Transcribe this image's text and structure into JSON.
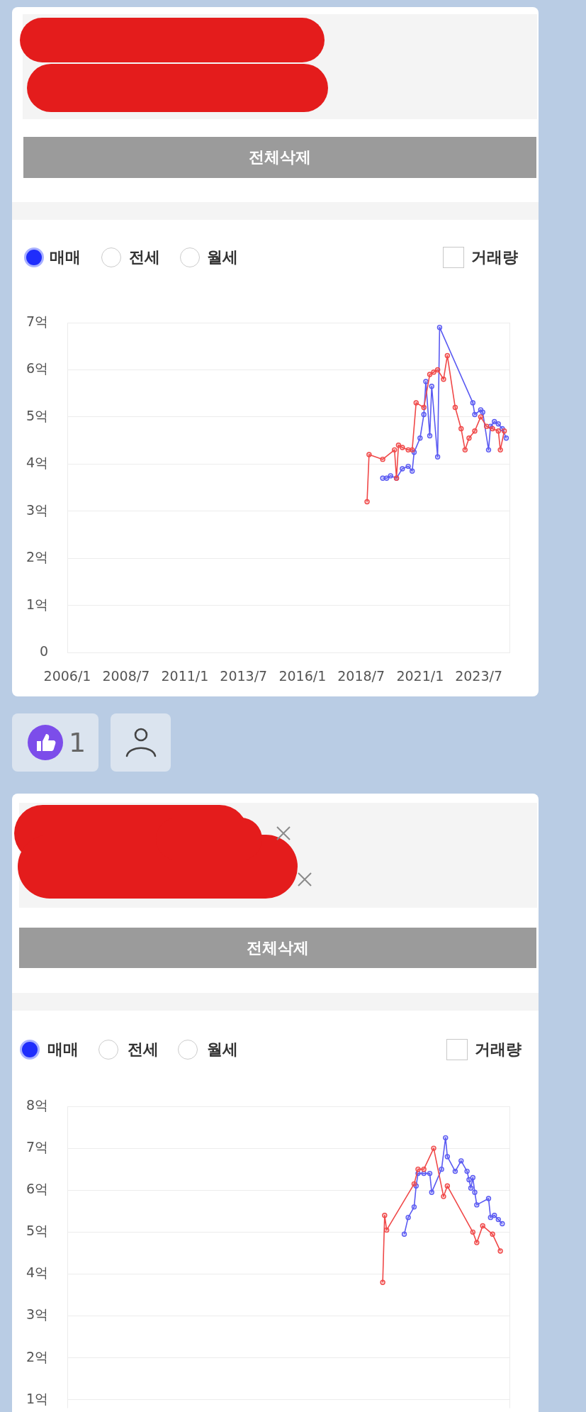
{
  "chart_data": [
    {
      "type": "line",
      "annotations": [
        "전체삭제",
        "매매",
        "전세",
        "월세",
        "거래량",
        "1"
      ],
      "xlim": [
        "2006-01",
        "2024-11"
      ],
      "xticks": [
        {
          "value": "2006-01",
          "label": "2006/1"
        },
        {
          "value": "2008-07",
          "label": "2008/7"
        },
        {
          "value": "2011-01",
          "label": "2011/1"
        },
        {
          "value": "2013-07",
          "label": "2013/7"
        },
        {
          "value": "2016-01",
          "label": "2016/1"
        },
        {
          "value": "2018-07",
          "label": "2018/7"
        },
        {
          "value": "2021-01",
          "label": "2021/1"
        },
        {
          "value": "2023-07",
          "label": "2023/7"
        }
      ],
      "ylim": [
        0,
        7
      ],
      "yticks": [
        0,
        {
          "value": 1,
          "label": "1억"
        },
        {
          "value": 2,
          "label": "2억"
        },
        {
          "value": 3,
          "label": "3억"
        },
        {
          "value": 4,
          "label": "4억"
        },
        {
          "value": 5,
          "label": "5억"
        },
        {
          "value": 6,
          "label": "6억"
        },
        {
          "value": 7,
          "label": "7억"
        }
      ],
      "grid": "y",
      "marker": "circle",
      "series": [
        {
          "color": "#f04848",
          "x": [
            "2018-10",
            "2018-11",
            "2019-06",
            "2019-12",
            "2020-01",
            "2020-02",
            "2020-04",
            "2020-07",
            "2020-09",
            "2020-11",
            "2021-03",
            "2021-06",
            "2021-08",
            "2021-10",
            "2022-01",
            "2022-03",
            "2022-07",
            "2022-10",
            "2022-12",
            "2023-02",
            "2023-05",
            "2023-08",
            "2023-11",
            "2024-02",
            "2024-05",
            "2024-06",
            "2024-08"
          ],
          "values": [
            3.2,
            4.2,
            4.1,
            4.3,
            3.7,
            4.4,
            4.35,
            4.3,
            4.3,
            5.3,
            5.2,
            5.9,
            5.95,
            6.0,
            5.8,
            6.3,
            5.2,
            4.75,
            4.3,
            4.55,
            4.7,
            5.0,
            4.8,
            4.75,
            4.7,
            4.3,
            4.7
          ]
        },
        {
          "color": "#5a5af2",
          "x": [
            "2019-06",
            "2019-08",
            "2019-10",
            "2020-01",
            "2020-04",
            "2020-07",
            "2020-09",
            "2020-10",
            "2021-01",
            "2021-03",
            "2021-04",
            "2021-06",
            "2021-07",
            "2021-10",
            "2021-11",
            "2023-04",
            "2023-05",
            "2023-08",
            "2023-09",
            "2023-12",
            "2024-01",
            "2024-03",
            "2024-05",
            "2024-07",
            "2024-09"
          ],
          "values": [
            3.7,
            3.7,
            3.75,
            3.7,
            3.9,
            3.95,
            3.85,
            4.25,
            4.55,
            5.05,
            5.75,
            4.6,
            5.65,
            4.15,
            6.9,
            5.3,
            5.05,
            5.15,
            5.1,
            4.3,
            4.8,
            4.9,
            4.85,
            4.75,
            4.55
          ]
        }
      ]
    },
    {
      "type": "line",
      "annotations": [
        "전체삭제",
        "매매",
        "전세",
        "월세",
        "거래량"
      ],
      "xlim": [
        "2006-01",
        "2024-11"
      ],
      "tick_labels": "y",
      "ylim": [
        0.8,
        8
      ],
      "yticks": [
        {
          "value": 1,
          "label": "1억"
        },
        {
          "value": 2,
          "label": "2억"
        },
        {
          "value": 3,
          "label": "3억"
        },
        {
          "value": 4,
          "label": "4억"
        },
        {
          "value": 5,
          "label": "5억"
        },
        {
          "value": 6,
          "label": "6억"
        },
        {
          "value": 7,
          "label": "7억"
        },
        {
          "value": 8,
          "label": "8억"
        }
      ],
      "grid": "y",
      "marker": "circle",
      "series": [
        {
          "color": "#f04848",
          "x": [
            "2019-06",
            "2019-07",
            "2019-08",
            "2020-10",
            "2020-12",
            "2021-03",
            "2021-08",
            "2022-01",
            "2022-03",
            "2023-04",
            "2023-06",
            "2023-09",
            "2024-02",
            "2024-06"
          ],
          "values": [
            3.8,
            5.4,
            5.05,
            6.15,
            6.5,
            6.5,
            7.0,
            5.85,
            6.1,
            5.0,
            4.75,
            5.15,
            4.95,
            4.55
          ]
        },
        {
          "color": "#5a5af2",
          "x": [
            "2020-05",
            "2020-07",
            "2020-10",
            "2020-11",
            "2020-12",
            "2021-03",
            "2021-06",
            "2021-07",
            "2021-12",
            "2022-02",
            "2022-03",
            "2022-07",
            "2022-10",
            "2023-01",
            "2023-02",
            "2023-03",
            "2023-04",
            "2023-05",
            "2023-06",
            "2023-12",
            "2024-01",
            "2024-03",
            "2024-05",
            "2024-07"
          ],
          "values": [
            4.95,
            5.35,
            5.6,
            6.1,
            6.4,
            6.4,
            6.4,
            5.95,
            6.5,
            7.25,
            6.8,
            6.45,
            6.7,
            6.45,
            6.25,
            6.05,
            6.3,
            5.95,
            5.65,
            5.8,
            5.35,
            5.4,
            5.3,
            5.2
          ]
        }
      ]
    }
  ]
}
